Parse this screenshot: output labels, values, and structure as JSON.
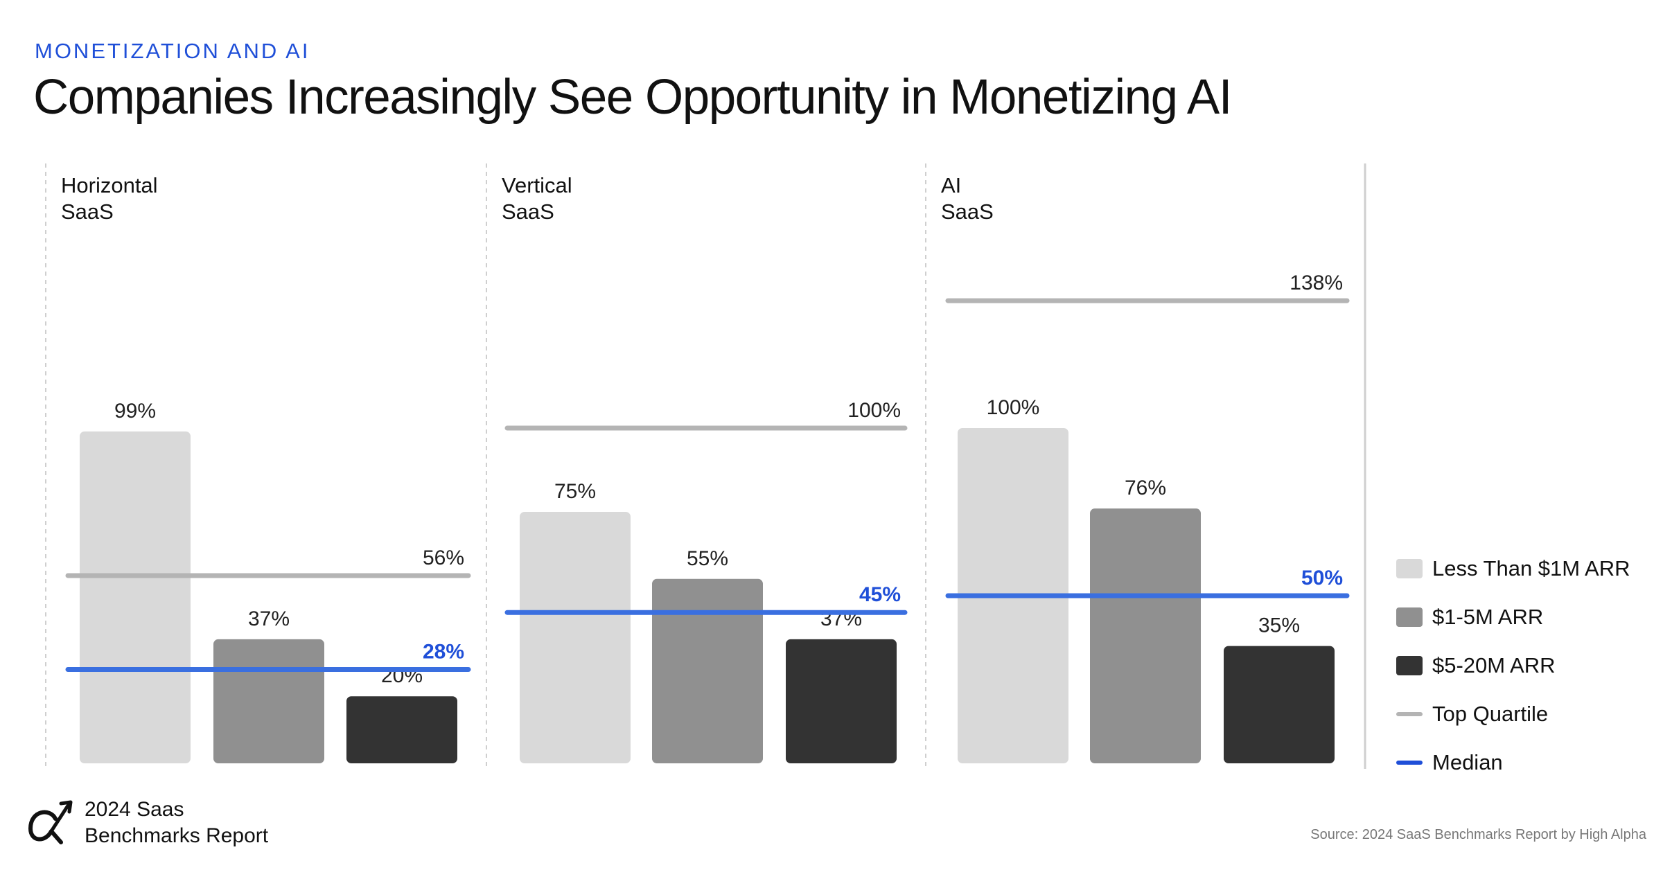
{
  "header": {
    "eyebrow": "MONETIZATION AND AI",
    "title": "Companies Increasingly See Opportunity in Monetizing AI"
  },
  "colors": {
    "accent": "#1f4fd8",
    "less_than_1m": "#d9d9d9",
    "one_to_five": "#909090",
    "five_to_twenty": "#333333",
    "top_quartile": "#b4b4b4",
    "median": "#3a6fe0"
  },
  "chart_data": {
    "type": "bar",
    "series_names": [
      "Less Than $1M ARR",
      "$1-5M ARR",
      "$5-20M ARR"
    ],
    "panels": [
      {
        "title_line1": "Horizontal",
        "title_line2": "SaaS",
        "values": [
          99,
          37,
          20
        ],
        "labels": [
          "99%",
          "37%",
          "20%"
        ],
        "top_quartile": 56,
        "top_quartile_label": "56%",
        "median": 28,
        "median_label": "28%"
      },
      {
        "title_line1": "Vertical",
        "title_line2": "SaaS",
        "values": [
          75,
          55,
          37
        ],
        "labels": [
          "75%",
          "55%",
          "37%"
        ],
        "top_quartile": 100,
        "top_quartile_label": "100%",
        "median": 45,
        "median_label": "45%"
      },
      {
        "title_line1": "AI",
        "title_line2": "SaaS",
        "values": [
          100,
          76,
          35
        ],
        "labels": [
          "100%",
          "76%",
          "35%"
        ],
        "top_quartile": 138,
        "top_quartile_label": "138%",
        "median": 50,
        "median_label": "50%"
      }
    ],
    "unit": "%",
    "ylim": [
      0,
      140
    ],
    "legend_position": "right"
  },
  "legend": {
    "items": [
      {
        "label": "Less Than $1M ARR",
        "kind": "box",
        "color": "#d9d9d9"
      },
      {
        "label": "$1-5M ARR",
        "kind": "box",
        "color": "#909090"
      },
      {
        "label": "$5-20M ARR",
        "kind": "box",
        "color": "#333333"
      },
      {
        "label": "Top Quartile",
        "kind": "line",
        "color": "#b4b4b4"
      },
      {
        "label": "Median",
        "kind": "line",
        "color": "#1f4fd8"
      }
    ]
  },
  "footer": {
    "logo_line1": "2024 Saas",
    "logo_line2": "Benchmarks Report",
    "source": "Source: 2024 SaaS Benchmarks Report by High Alpha"
  }
}
